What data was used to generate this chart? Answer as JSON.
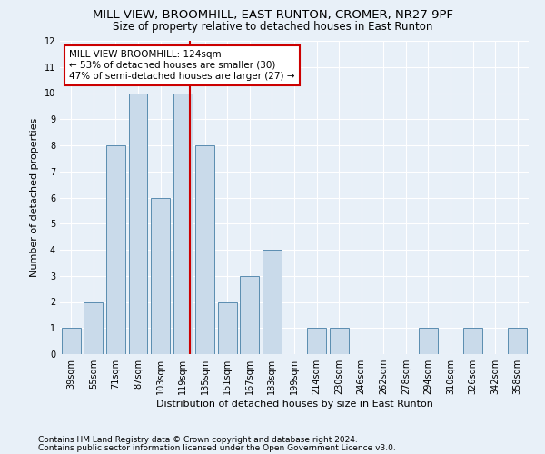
{
  "title1": "MILL VIEW, BROOMHILL, EAST RUNTON, CROMER, NR27 9PF",
  "title2": "Size of property relative to detached houses in East Runton",
  "xlabel": "Distribution of detached houses by size in East Runton",
  "ylabel": "Number of detached properties",
  "categories": [
    "39sqm",
    "55sqm",
    "71sqm",
    "87sqm",
    "103sqm",
    "119sqm",
    "135sqm",
    "151sqm",
    "167sqm",
    "183sqm",
    "199sqm",
    "214sqm",
    "230sqm",
    "246sqm",
    "262sqm",
    "278sqm",
    "294sqm",
    "310sqm",
    "326sqm",
    "342sqm",
    "358sqm"
  ],
  "values": [
    1,
    2,
    8,
    10,
    6,
    10,
    8,
    2,
    3,
    4,
    0,
    1,
    1,
    0,
    0,
    0,
    1,
    0,
    1,
    0,
    1
  ],
  "bar_color": "#c9daea",
  "bar_edge_color": "#5a8db0",
  "vline_color": "#cc0000",
  "annotation_text": "MILL VIEW BROOMHILL: 124sqm\n← 53% of detached houses are smaller (30)\n47% of semi-detached houses are larger (27) →",
  "annotation_box_color": "#ffffff",
  "annotation_box_edge": "#cc0000",
  "ylim": [
    0,
    12
  ],
  "yticks": [
    0,
    1,
    2,
    3,
    4,
    5,
    6,
    7,
    8,
    9,
    10,
    11,
    12
  ],
  "footer1": "Contains HM Land Registry data © Crown copyright and database right 2024.",
  "footer2": "Contains public sector information licensed under the Open Government Licence v3.0.",
  "bg_color": "#e8f0f8",
  "plot_bg_color": "#e8f0f8",
  "title1_fontsize": 9.5,
  "title2_fontsize": 8.5,
  "xlabel_fontsize": 8,
  "ylabel_fontsize": 8,
  "tick_fontsize": 7,
  "footer_fontsize": 6.5,
  "annot_fontsize": 7.5
}
